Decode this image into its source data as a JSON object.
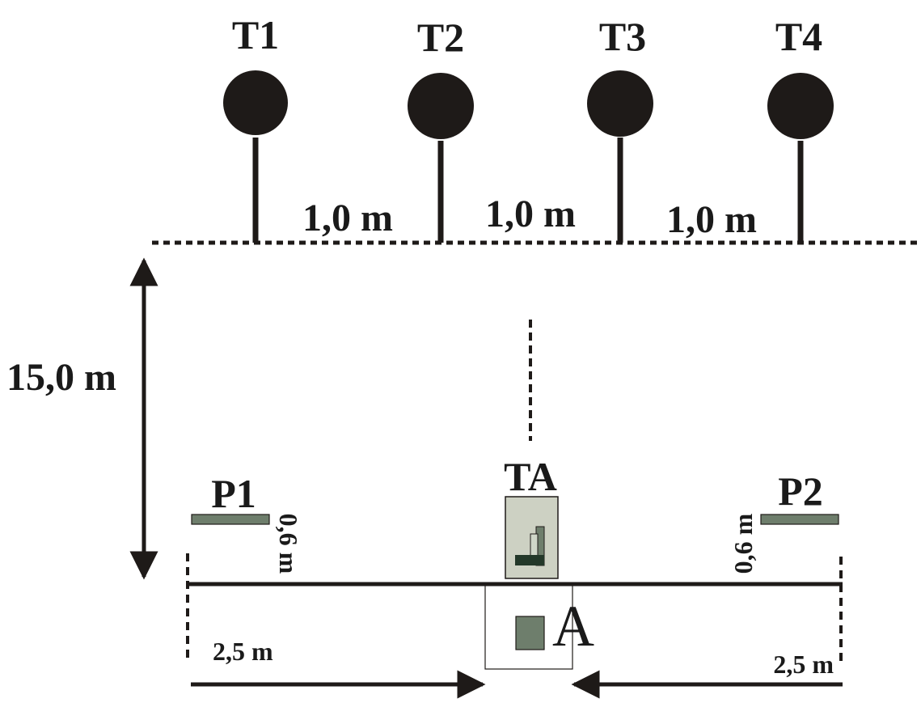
{
  "targets": [
    {
      "label": "T1"
    },
    {
      "label": "T2"
    },
    {
      "label": "T3"
    },
    {
      "label": "T4"
    }
  ],
  "target_spacing_labels": [
    "1,0 m",
    "1,0 m",
    "1,0 m"
  ],
  "range_distance_label": "15,0 m",
  "targeting_aid": {
    "label": "TA"
  },
  "position_p1": {
    "label": "P1",
    "offset_label": "0,6 m"
  },
  "position_p2": {
    "label": "P2",
    "offset_label": "0,6 m"
  },
  "position_a": {
    "label": "A"
  },
  "lateral_distance_left": "2,5 m",
  "lateral_distance_right": "2,5 m",
  "colors": {
    "ink": "#1e1a18",
    "target_fill": "#1e1a18",
    "marker_fill": "#6e7e6c",
    "ta_box_fill": "#cdd1c3",
    "ta_icon_dark": "#233829",
    "ta_icon_mid": "#6e7e6c",
    "ta_icon_light": "#cfd6c8"
  }
}
